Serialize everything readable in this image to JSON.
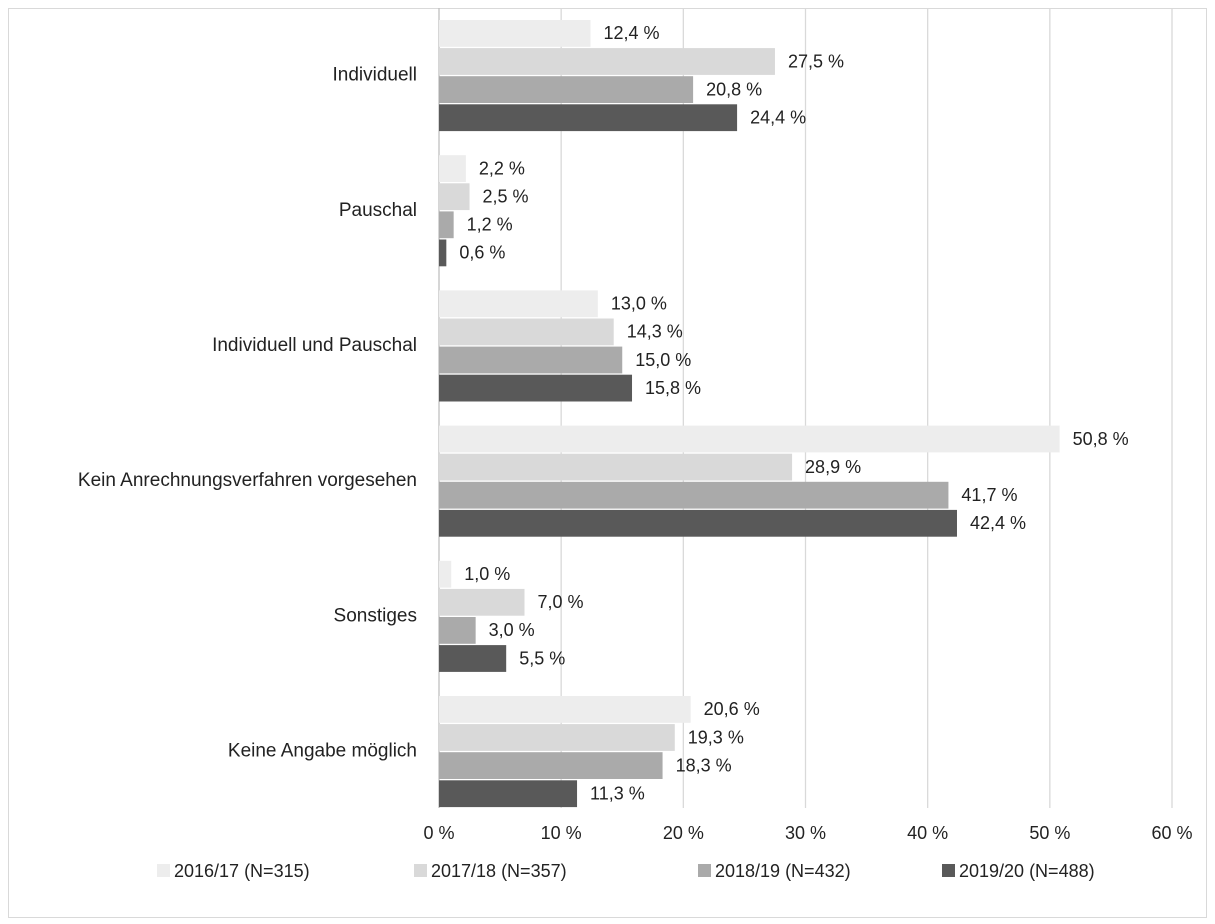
{
  "chart_data": {
    "type": "bar",
    "orientation": "horizontal",
    "categories": [
      "Individuell",
      "Pauschal",
      "Individuell und Pauschal",
      "Kein Anrechnungsverfahren vorgesehen",
      "Sonstiges",
      "Keine Angabe möglich"
    ],
    "series": [
      {
        "name": "2016/17 (N=315)",
        "color": "#ededed",
        "values": [
          12.4,
          2.2,
          13.0,
          50.8,
          1.0,
          20.6
        ],
        "labels": [
          "12,4 %",
          "2,2 %",
          "13,0 %",
          "50,8 %",
          "1,0 %",
          "20,6 %"
        ]
      },
      {
        "name": "2017/18 (N=357)",
        "color": "#d9d9d9",
        "values": [
          27.5,
          2.5,
          14.3,
          28.9,
          7.0,
          19.3
        ],
        "labels": [
          "27,5 %",
          "2,5 %",
          "14,3 %",
          "28,9 %",
          "7,0 %",
          "19,3 %"
        ]
      },
      {
        "name": "2018/19 (N=432)",
        "color": "#aaaaaa",
        "values": [
          20.8,
          1.2,
          15.0,
          41.7,
          3.0,
          18.3
        ],
        "labels": [
          "20,8 %",
          "1,2 %",
          "15,0 %",
          "41,7 %",
          "3,0 %",
          "18,3 %"
        ]
      },
      {
        "name": "2019/20 (N=488)",
        "color": "#595959",
        "values": [
          24.4,
          0.6,
          15.8,
          42.4,
          5.5,
          11.3
        ],
        "labels": [
          "24,4 %",
          "0,6 %",
          "15,8 %",
          "42,4 %",
          "5,5 %",
          "11,3 %"
        ]
      }
    ],
    "xlim": [
      0,
      60
    ],
    "xticks": [
      0,
      10,
      20,
      30,
      40,
      50,
      60
    ],
    "xtick_labels": [
      "0 %",
      "10 %",
      "20 %",
      "30 %",
      "40 %",
      "50 %",
      "60 %"
    ],
    "grid": true,
    "legend": "bottom"
  }
}
